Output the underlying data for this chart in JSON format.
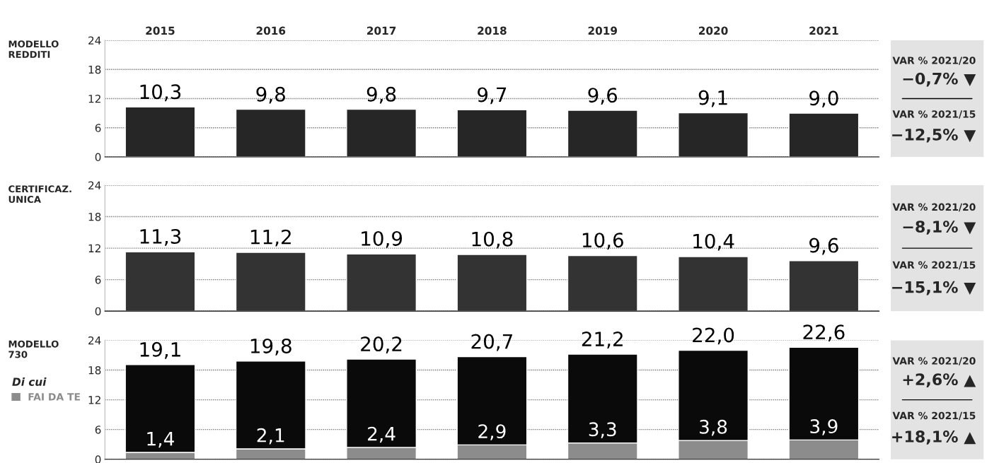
{
  "chart_data": [
    {
      "type": "bar",
      "title": "MODELLO\nREDDITI",
      "categories": [
        "2015",
        "2016",
        "2017",
        "2018",
        "2019",
        "2020",
        "2021"
      ],
      "values": [
        10.3,
        9.8,
        9.8,
        9.7,
        9.6,
        9.1,
        9.0
      ],
      "value_labels": [
        "10,3",
        "9,8",
        "9,8",
        "9,7",
        "9,6",
        "9,1",
        "9,0"
      ],
      "color": "#262626",
      "ylim": [
        0,
        24
      ],
      "yticks": [
        0,
        6,
        12,
        18,
        24
      ],
      "grid": "y",
      "annotations": [
        "VAR % 2021/20",
        "−0,7% ▼",
        "VAR % 2021/15",
        "−12,5% ▼"
      ]
    },
    {
      "type": "bar",
      "title": "CERTIFICAZ.\nUNICA",
      "categories": [
        "2015",
        "2016",
        "2017",
        "2018",
        "2019",
        "2020",
        "2021"
      ],
      "values": [
        11.3,
        11.2,
        10.9,
        10.8,
        10.6,
        10.4,
        9.6
      ],
      "value_labels": [
        "11,3",
        "11,2",
        "10,9",
        "10,8",
        "10,6",
        "10,4",
        "9,6"
      ],
      "color": "#333333",
      "ylim": [
        0,
        24
      ],
      "yticks": [
        0,
        6,
        12,
        18,
        24
      ],
      "grid": "y",
      "tick_labels": "y",
      "annotations": [
        "VAR % 2021/20",
        "−8,1% ▼",
        "VAR % 2021/15",
        "−15,1% ▼"
      ]
    },
    {
      "type": "bar",
      "title": "MODELLO\n730",
      "categories": [
        "2015",
        "2016",
        "2017",
        "2018",
        "2019",
        "2020",
        "2021"
      ],
      "stacked": true,
      "legend": "left",
      "legend_title": "Di cui",
      "series": [
        {
          "name": "FAI DA TE",
          "color": "#8c8c8c",
          "values": [
            1.4,
            2.1,
            2.4,
            2.9,
            3.3,
            3.8,
            3.9
          ],
          "value_labels": [
            "1,4",
            "2,1",
            "2,4",
            "2,9",
            "3,3",
            "3,8",
            "3,9"
          ]
        },
        {
          "color": "#0a0a0a",
          "values": [
            17.7,
            17.7,
            17.8,
            17.8,
            17.9,
            18.2,
            18.7
          ]
        }
      ],
      "totals": [
        "19,1",
        "19,8",
        "20,2",
        "20,7",
        "21,2",
        "22,0",
        "22,6"
      ],
      "ylim": [
        0,
        24
      ],
      "yticks": [
        0,
        6,
        12,
        18,
        24
      ],
      "grid": "y",
      "tick_labels": "y",
      "annotations": [
        "VAR % 2021/20",
        "+2,6% ▲",
        "VAR % 2021/15",
        "+18,1% ▲"
      ]
    }
  ]
}
